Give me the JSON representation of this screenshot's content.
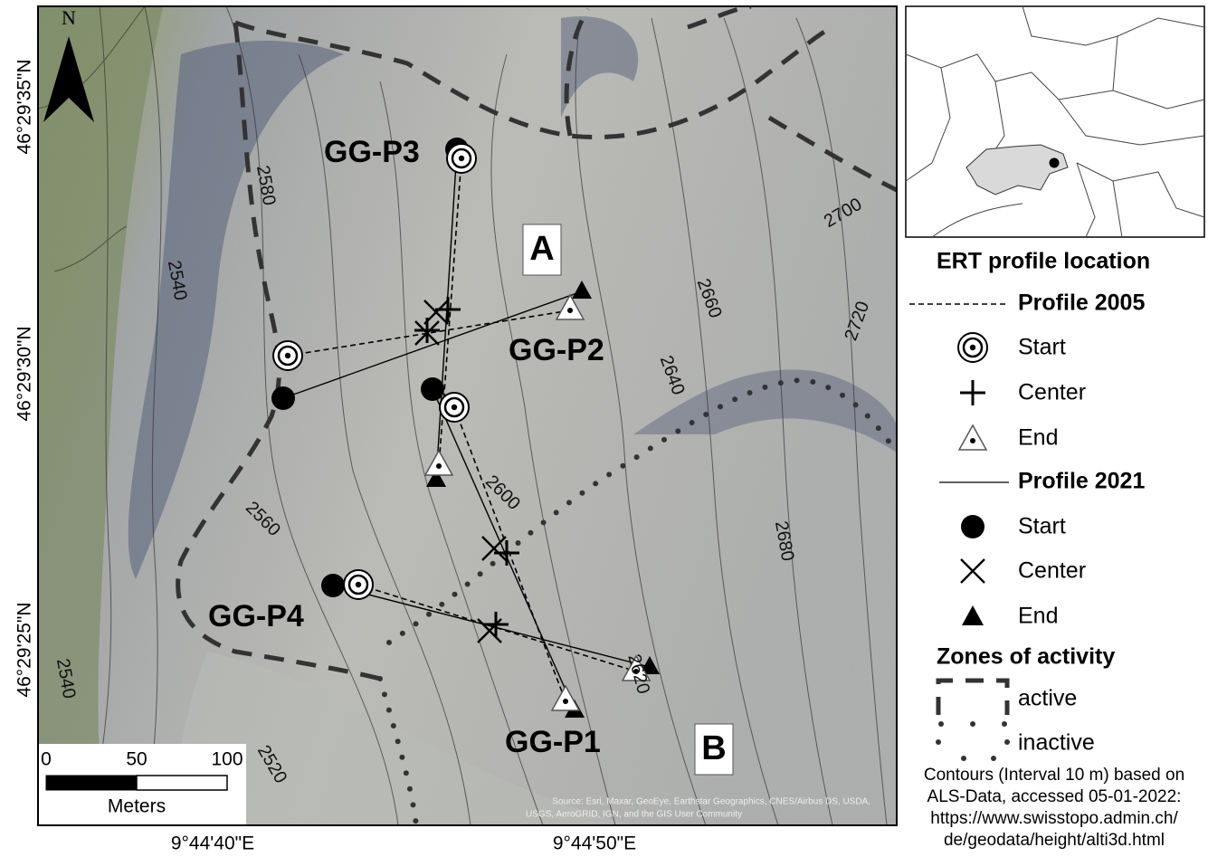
{
  "north_arrow": "N",
  "latitude_labels": [
    "46°29'35\"N",
    "46°29'30\"N",
    "46°29'25\"N"
  ],
  "longitude_labels": [
    "9°44'40\"E",
    "9°44'50\"E"
  ],
  "contour_labels": [
    "2580",
    "2540",
    "2560",
    "2540",
    "2520",
    "2600",
    "2620",
    "2640",
    "2660",
    "2680",
    "2700",
    "2720"
  ],
  "profiles": [
    "GG-P3",
    "GG-P2",
    "GG-P4",
    "GG-P1"
  ],
  "zones": [
    "A",
    "B"
  ],
  "scale_bar": {
    "ticks": [
      "0",
      "50",
      "100"
    ],
    "unit": "Meters"
  },
  "source": [
    "Source: Esri, Maxar, GeoEye, Earthstar Geographics, CNES/Airbus DS, USDA,",
    "USGS, AeroGRID, IGN, and the GIS User Community"
  ],
  "legend": {
    "title": "ERT profile location",
    "profile_2005": {
      "name": "Profile 2005",
      "start": "Start",
      "center": "Center",
      "end": "End"
    },
    "profile_2021": {
      "name": "Profile 2021",
      "start": "Start",
      "center": "Center",
      "end": "End"
    },
    "zones_title": "Zones of activity",
    "active": "active",
    "inactive": "inactive"
  },
  "footnote": [
    "Contours (Interval 10 m) based on",
    "ALS-Data, accessed 05-01-2022:",
    "https://www.swisstopo.admin.ch/",
    "de/geodata/height/alti3d.html"
  ]
}
